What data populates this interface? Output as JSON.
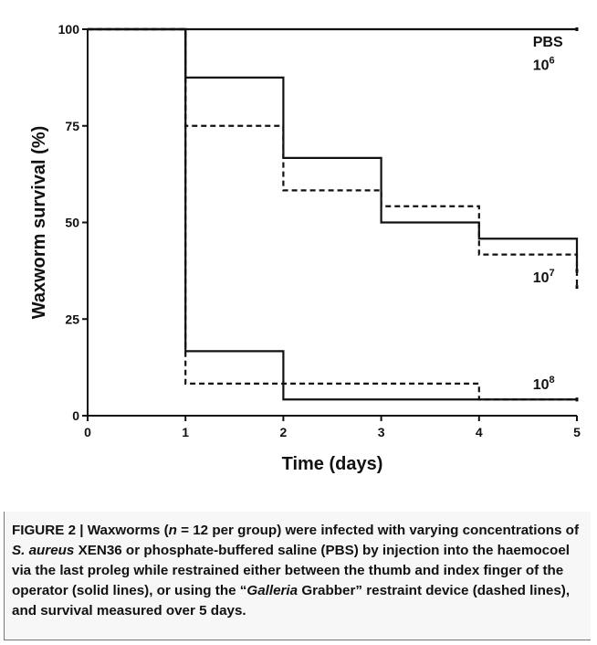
{
  "chart_data": {
    "type": "line",
    "step": true,
    "xlabel": "Time (days)",
    "ylabel": "Waxworm survival (%)",
    "xlim": [
      0,
      5
    ],
    "ylim": [
      0,
      100
    ],
    "xticks": [
      0,
      1,
      2,
      3,
      4,
      5
    ],
    "yticks": [
      0,
      25,
      50,
      75,
      100
    ],
    "grid": false,
    "series": [
      {
        "style": "solid",
        "x": [
          0,
          1,
          2,
          3,
          4,
          5
        ],
        "y": [
          100,
          100,
          100,
          100,
          100,
          100
        ]
      },
      {
        "style": "solid",
        "x": [
          0,
          1,
          2,
          3,
          4,
          5
        ],
        "y": [
          100,
          87.5,
          66.7,
          50,
          45.8,
          37.5
        ]
      },
      {
        "style": "dashed",
        "x": [
          0,
          1,
          2,
          3,
          4,
          5
        ],
        "y": [
          100,
          75,
          58.3,
          54.2,
          41.7,
          33.3
        ]
      },
      {
        "style": "solid",
        "x": [
          0,
          1,
          2,
          3,
          4,
          5
        ],
        "y": [
          100,
          16.7,
          4.2,
          4.2,
          4.2,
          4.2
        ]
      },
      {
        "style": "dashed",
        "x": [
          0,
          1,
          2,
          3,
          4,
          5
        ],
        "y": [
          100,
          8.3,
          8.3,
          8.3,
          4.2,
          4.2
        ]
      }
    ],
    "annotations": [
      {
        "base": "PBS",
        "exp": "",
        "x": 4.55,
        "y": 95.5
      },
      {
        "base": "10",
        "exp": "6",
        "x": 4.55,
        "y": 89.5
      },
      {
        "base": "10",
        "exp": "7",
        "x": 4.55,
        "y": 34.5
      },
      {
        "base": "10",
        "exp": "8",
        "x": 4.55,
        "y": 6.8
      }
    ]
  },
  "caption": {
    "prefix": "FIGURE 2 | Waxworms (",
    "n_var": "n",
    "part2": " = 12 per group) were infected with varying concentrations of ",
    "species": "S. aureus",
    "part3": " XEN36 or phosphate-buffered saline (PBS) by injection into the haemocoel via the last proleg while restrained either between the thumb and index finger of the operator (solid lines), or using the “",
    "device": "Galleria",
    "part4": " Grabber” restraint device (dashed lines), and survival measured over 5 days."
  }
}
